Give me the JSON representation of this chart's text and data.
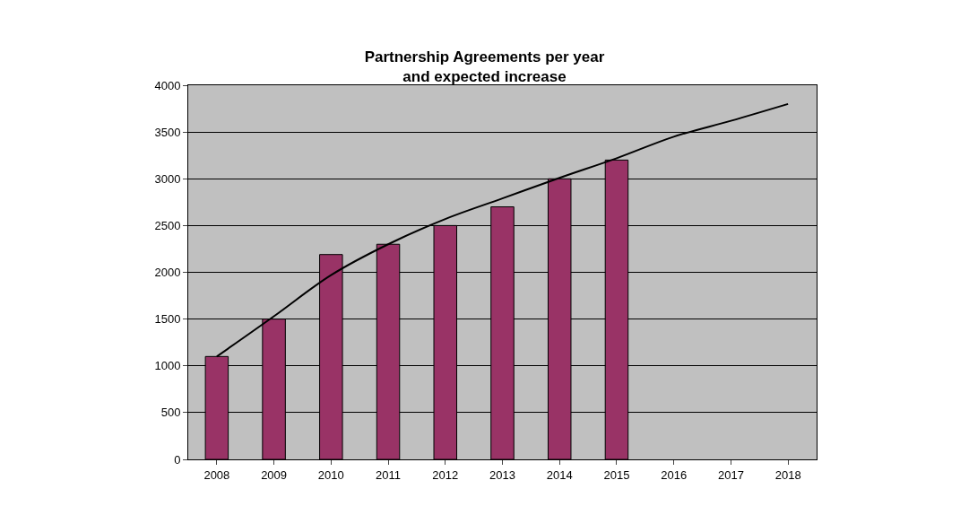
{
  "chart_data": {
    "type": "bar",
    "title": "Partnership Agreements per year\nand expected increase",
    "categories": [
      "2008",
      "2009",
      "2010",
      "2011",
      "2012",
      "2013",
      "2014",
      "2015",
      "2016",
      "2017",
      "2018"
    ],
    "series": [
      {
        "color": "#993366",
        "values": [
          1100,
          1500,
          2190,
          2300,
          2500,
          2700,
          3000,
          3200,
          null,
          null,
          null
        ]
      },
      {
        "type": "line",
        "color": "#000000",
        "values": [
          1100,
          1530,
          1970,
          2300,
          2570,
          2790,
          3010,
          3220,
          3450,
          3620,
          3800
        ]
      }
    ],
    "ylim": [
      0,
      4000
    ],
    "yticks": [
      0,
      500,
      1000,
      1500,
      2000,
      2500,
      3000,
      3500,
      4000
    ],
    "grid": "y",
    "marker": "none",
    "line_style": "solid"
  }
}
